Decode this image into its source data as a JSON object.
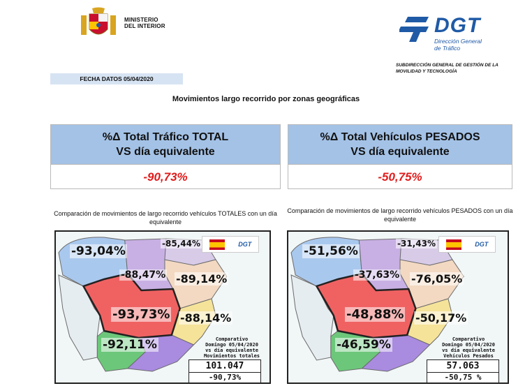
{
  "header": {
    "ministry_line1": "MINISTERIO",
    "ministry_line2": "DEL INTERIOR",
    "dgt_name": "DGT",
    "dgt_full_line1": "Dirección General",
    "dgt_full_line2": "de Tráfico",
    "subdir_line1": "SUBDIRECCIÓN GENERAL DE GESTIÓN DE LA",
    "subdir_line2": "MOVILIDAD Y TECNOLOGÍA",
    "date_label": "FECHA DATOS 05/04/2020"
  },
  "title": "Movimientos largo recorrido por zonas geográficas",
  "kpis": {
    "total": {
      "line1": "%Δ Total Tráfico TOTAL",
      "line2": "VS día equivalente",
      "value": "-90,73%"
    },
    "heavy": {
      "line1": "%Δ Total Vehículos PESADOS",
      "line2": "VS día equivalente",
      "value": "-50,75%"
    }
  },
  "maps": {
    "total": {
      "caption": "Comparación de movimientos de largo recorrido vehículos TOTALES con un día equivalente",
      "zones": {
        "northwest": "-93,04%",
        "northeast": "-85,44%",
        "north_central": "-88,47%",
        "east_north": "-89,14%",
        "center": "-93,73%",
        "east": "-88,14%",
        "south": "-92,11%"
      },
      "legend_line1": "Comparativo",
      "legend_line2": "Domingo 05/04/2020",
      "legend_line3": "vs día equivalente",
      "legend_line4": "Movimientos totales",
      "count": "101.047",
      "count_pct": "-90,73%",
      "mini_dgt": "DGT"
    },
    "heavy": {
      "caption": "Comparación de movimientos de largo recorrido vehículos PESADOS con un día equivalente",
      "zones": {
        "northwest": "-51,56%",
        "northeast": "-31,43%",
        "north_central": "-37,63%",
        "east_north": "-76,05%",
        "center": "-48,88%",
        "east": "-50,17%",
        "south": "-46,59%"
      },
      "legend_line1": "Comparativo",
      "legend_line2": "Domingo 05/04/2020",
      "legend_line3": "vs día equivalente",
      "legend_line4": "Vehículos Pesados",
      "count": "57.063",
      "count_pct": "-50,75 %",
      "mini_dgt": "DGT"
    }
  },
  "colors": {
    "zone_northwest": "#a9c8ee",
    "zone_north_central": "#c8b0e4",
    "zone_northeast": "#d7cbe8",
    "zone_east_north": "#f3d9c2",
    "zone_center": "#f06262",
    "zone_east": "#f5e39a",
    "zone_south": "#6cc77a",
    "zone_southeast": "#a98be0",
    "kpi_header": "#a4c2e6",
    "kpi_value": "#e01b1b"
  }
}
